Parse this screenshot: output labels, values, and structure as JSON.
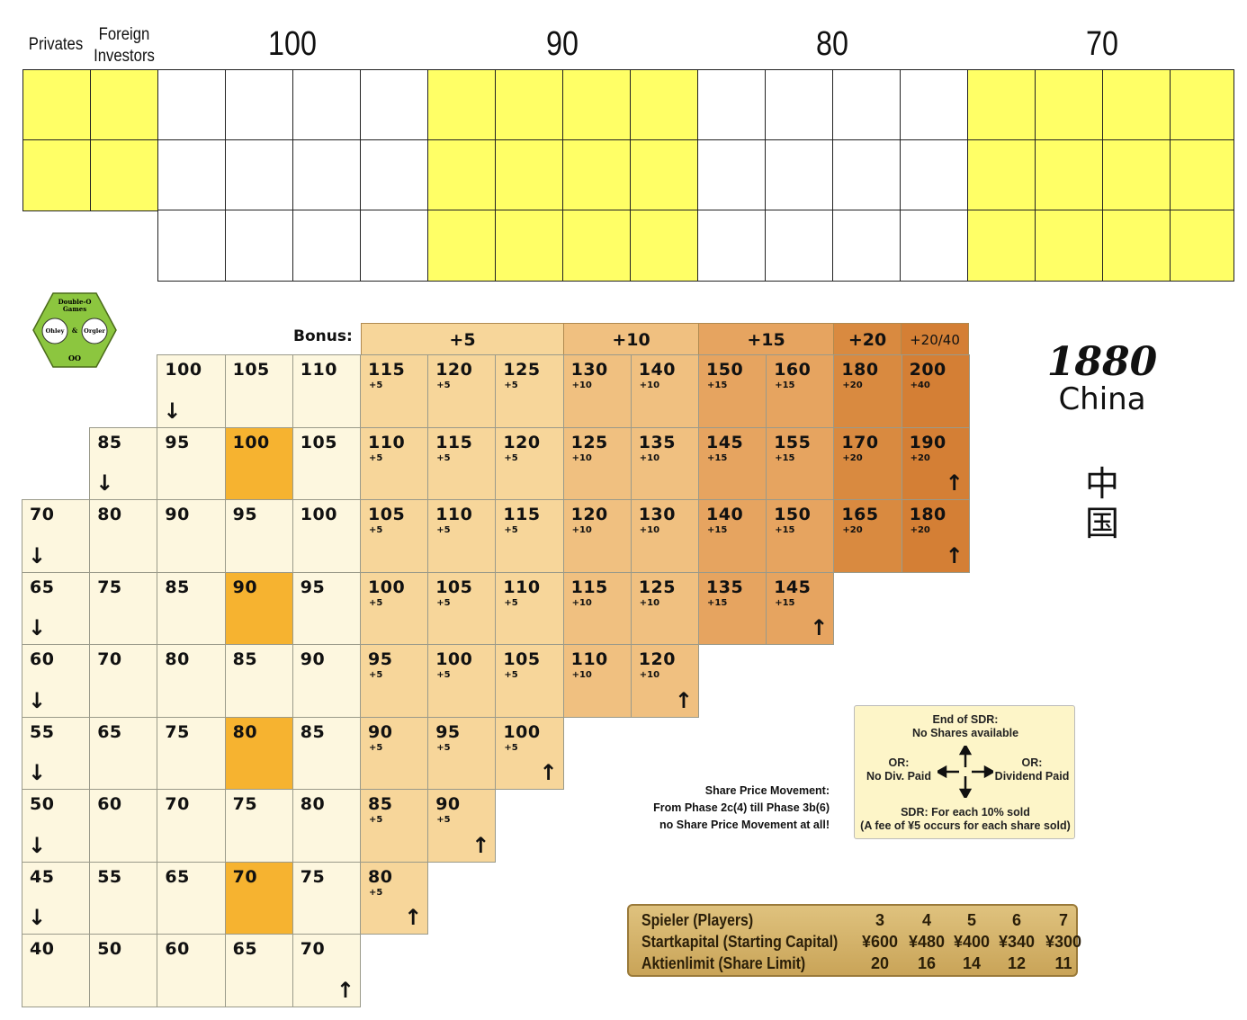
{
  "header": {
    "privates": "Privates",
    "foreign_line1": "Foreign",
    "foreign_line2": "Investors",
    "numbers": [
      "100",
      "90",
      "80",
      "70"
    ]
  },
  "bonus_label": "Bonus:",
  "bonus_headers": [
    "+5",
    "+10",
    "+15",
    "+20",
    "+20/40"
  ],
  "logo": {
    "line1": "Double-O",
    "line2": "Games",
    "left": "Ohley",
    "amp": "&",
    "right": "Orgler",
    "bottom": "OO"
  },
  "title": {
    "line1": "1880",
    "line2": "China",
    "chinese1": "中",
    "chinese2": "国"
  },
  "market_rows": [
    [
      null,
      null,
      {
        "p": "100",
        "d": true
      },
      {
        "p": "105"
      },
      {
        "p": "110"
      },
      {
        "p": "115",
        "b": "+5"
      },
      {
        "p": "120",
        "b": "+5"
      },
      {
        "p": "125",
        "b": "+5"
      },
      {
        "p": "130",
        "b": "+10"
      },
      {
        "p": "140",
        "b": "+10"
      },
      {
        "p": "150",
        "b": "+15"
      },
      {
        "p": "160",
        "b": "+15"
      },
      {
        "p": "180",
        "b": "+20"
      },
      {
        "p": "200",
        "b": "+40"
      }
    ],
    [
      null,
      {
        "p": "85",
        "d": true
      },
      {
        "p": "95"
      },
      {
        "p": "100",
        "h": true
      },
      {
        "p": "105"
      },
      {
        "p": "110",
        "b": "+5"
      },
      {
        "p": "115",
        "b": "+5"
      },
      {
        "p": "120",
        "b": "+5"
      },
      {
        "p": "125",
        "b": "+10"
      },
      {
        "p": "135",
        "b": "+10"
      },
      {
        "p": "145",
        "b": "+15"
      },
      {
        "p": "155",
        "b": "+15"
      },
      {
        "p": "170",
        "b": "+20"
      },
      {
        "p": "190",
        "b": "+20",
        "u": true
      }
    ],
    [
      {
        "p": "70",
        "d": true
      },
      {
        "p": "80"
      },
      {
        "p": "90"
      },
      {
        "p": "95"
      },
      {
        "p": "100"
      },
      {
        "p": "105",
        "b": "+5"
      },
      {
        "p": "110",
        "b": "+5"
      },
      {
        "p": "115",
        "b": "+5"
      },
      {
        "p": "120",
        "b": "+10"
      },
      {
        "p": "130",
        "b": "+10"
      },
      {
        "p": "140",
        "b": "+15"
      },
      {
        "p": "150",
        "b": "+15"
      },
      {
        "p": "165",
        "b": "+20"
      },
      {
        "p": "180",
        "b": "+20",
        "u": true
      }
    ],
    [
      {
        "p": "65",
        "d": true
      },
      {
        "p": "75"
      },
      {
        "p": "85"
      },
      {
        "p": "90",
        "h": true
      },
      {
        "p": "95"
      },
      {
        "p": "100",
        "b": "+5"
      },
      {
        "p": "105",
        "b": "+5"
      },
      {
        "p": "110",
        "b": "+5"
      },
      {
        "p": "115",
        "b": "+10"
      },
      {
        "p": "125",
        "b": "+10"
      },
      {
        "p": "135",
        "b": "+15"
      },
      {
        "p": "145",
        "b": "+15",
        "u": true
      }
    ],
    [
      {
        "p": "60",
        "d": true
      },
      {
        "p": "70"
      },
      {
        "p": "80"
      },
      {
        "p": "85"
      },
      {
        "p": "90"
      },
      {
        "p": "95",
        "b": "+5"
      },
      {
        "p": "100",
        "b": "+5"
      },
      {
        "p": "105",
        "b": "+5"
      },
      {
        "p": "110",
        "b": "+10"
      },
      {
        "p": "120",
        "b": "+10",
        "u": true
      }
    ],
    [
      {
        "p": "55",
        "d": true
      },
      {
        "p": "65"
      },
      {
        "p": "75"
      },
      {
        "p": "80",
        "h": true
      },
      {
        "p": "85"
      },
      {
        "p": "90",
        "b": "+5"
      },
      {
        "p": "95",
        "b": "+5"
      },
      {
        "p": "100",
        "b": "+5",
        "u": true
      }
    ],
    [
      {
        "p": "50",
        "d": true
      },
      {
        "p": "60"
      },
      {
        "p": "70"
      },
      {
        "p": "75"
      },
      {
        "p": "80"
      },
      {
        "p": "85",
        "b": "+5"
      },
      {
        "p": "90",
        "b": "+5",
        "u": true
      }
    ],
    [
      {
        "p": "45",
        "d": true
      },
      {
        "p": "55"
      },
      {
        "p": "65"
      },
      {
        "p": "70",
        "h": true
      },
      {
        "p": "75"
      },
      {
        "p": "80",
        "b": "+5",
        "u": true
      }
    ],
    [
      {
        "p": "40"
      },
      {
        "p": "50"
      },
      {
        "p": "60"
      },
      {
        "p": "65"
      },
      {
        "p": "70",
        "u": true
      }
    ]
  ],
  "legend": {
    "top1": "End of SDR:",
    "top2": "No Shares available",
    "left1": "OR:",
    "left2": "No Div. Paid",
    "right1": "OR:",
    "right2": "Dividend Paid",
    "bottom1": "SDR: For each 10% sold",
    "bottom2": "(A fee of ¥5 occurs for each share sold)"
  },
  "share_price_note": [
    "Share Price Movement:",
    "From Phase 2c(4) till Phase 3b(6)",
    "no Share Price Movement at all!"
  ],
  "players_table": {
    "rows": [
      {
        "label": "Spieler (Players)",
        "values": [
          "3",
          "4",
          "5",
          "6",
          "7"
        ]
      },
      {
        "label": "Startkapital (Starting Capital)",
        "values": [
          "¥600",
          "¥480",
          "¥400",
          "¥340",
          "¥300"
        ]
      },
      {
        "label": "Aktienlimit (Share Limit)",
        "values": [
          "20",
          "16",
          "14",
          "12",
          "11"
        ]
      }
    ]
  },
  "colors": {
    "yellow": "#ffff66",
    "highlight": "#f6b330",
    "white_zone": "#fdf7df"
  }
}
